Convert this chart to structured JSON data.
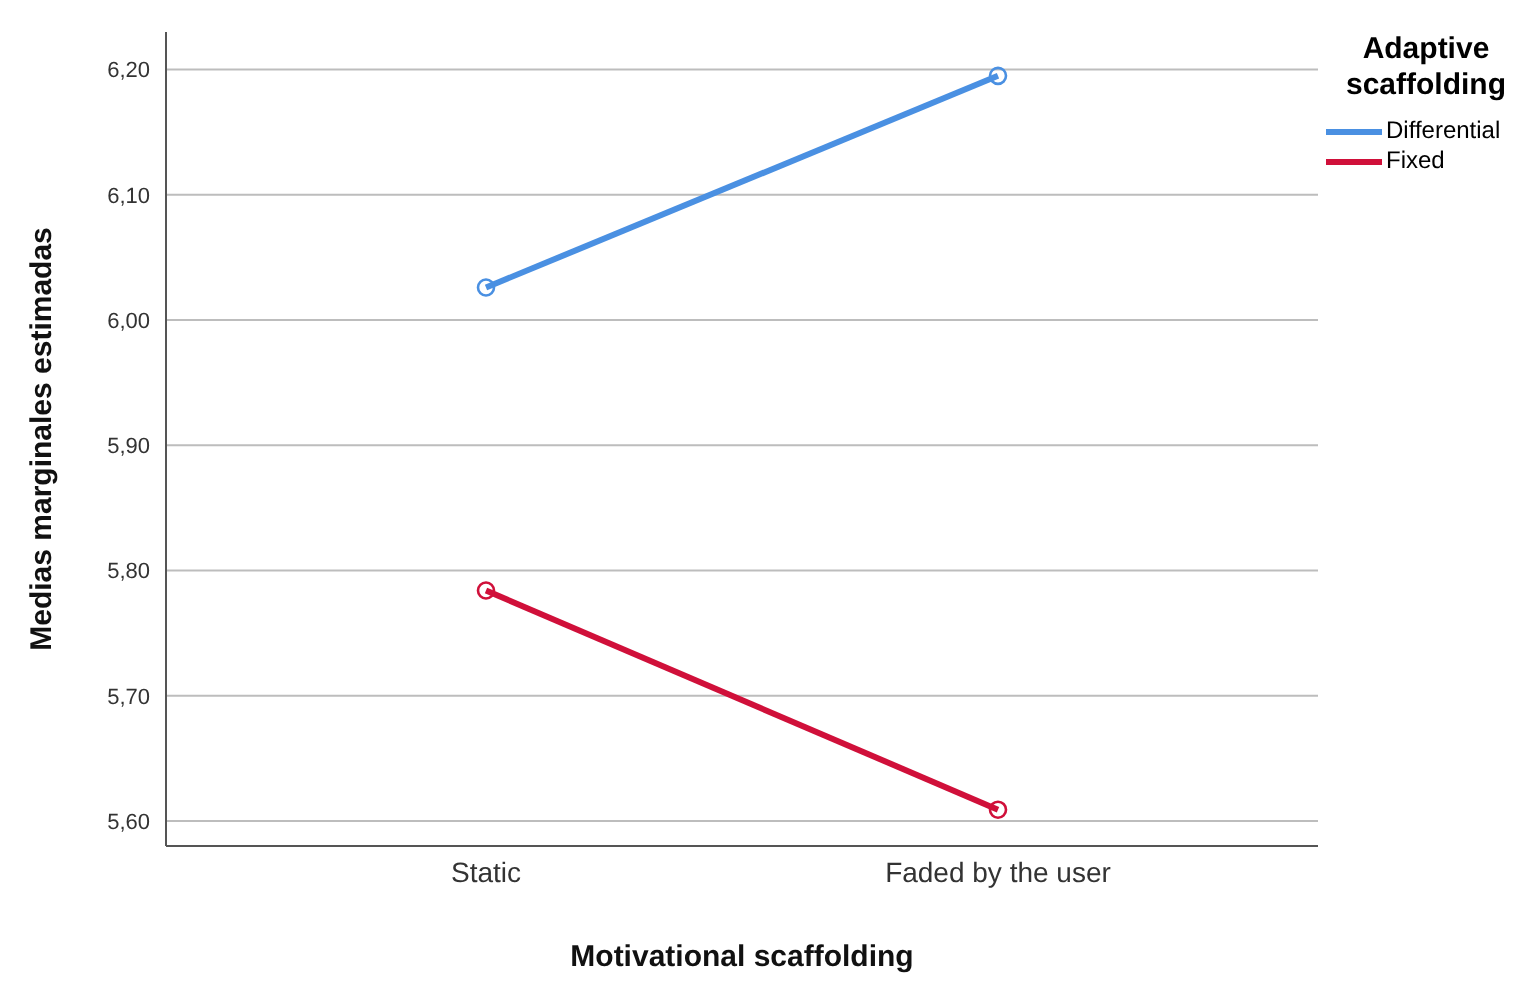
{
  "chart_data": {
    "type": "line",
    "xlabel": "Motivational scaffolding",
    "ylabel": "Medias marginales estimadas",
    "legend_title": "Adaptive scaffolding",
    "categories": [
      "Static",
      "Faded by the user"
    ],
    "series": [
      {
        "name": "Differential",
        "color": "#4a90e2",
        "values": [
          6.026,
          6.195
        ]
      },
      {
        "name": "Fixed",
        "color": "#d0103a",
        "values": [
          5.784,
          5.609
        ]
      }
    ],
    "ylim": [
      5.58,
      6.23
    ],
    "yticks": [
      {
        "value": 5.6,
        "label": "5,60"
      },
      {
        "value": 5.7,
        "label": "5,70"
      },
      {
        "value": 5.8,
        "label": "5,80"
      },
      {
        "value": 5.9,
        "label": "5,90"
      },
      {
        "value": 6.0,
        "label": "6,00"
      },
      {
        "value": 6.1,
        "label": "6,10"
      },
      {
        "value": 6.2,
        "label": "6,20"
      }
    ],
    "grid": "y",
    "legend": "top right",
    "marker": "circle",
    "line_style": "solid"
  }
}
